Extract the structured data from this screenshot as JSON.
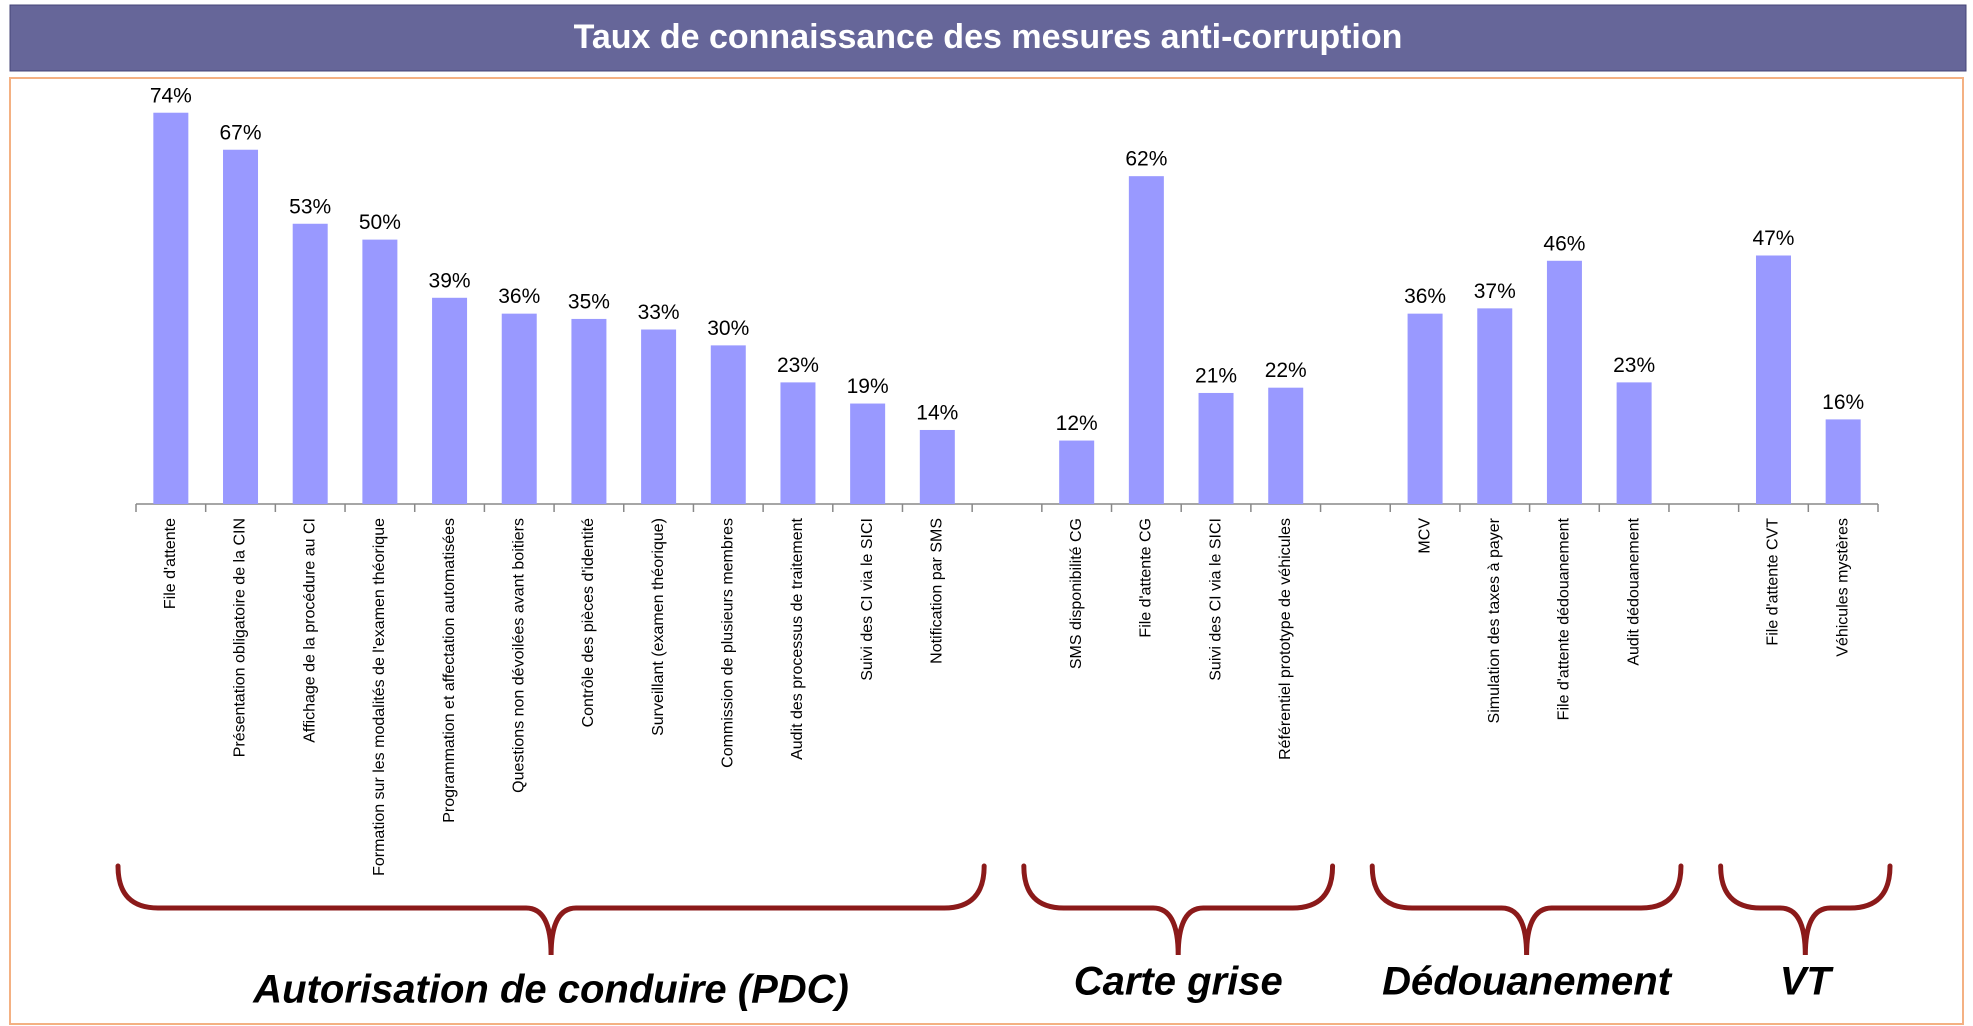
{
  "chart_data": {
    "type": "bar",
    "title": "Taux de connaissance des mesures anti-corruption",
    "categories": [
      "File d'attente",
      "Présentation obligatoire de la CIN",
      "Affichage de la procédure au CI",
      "Formation sur les modalités de l'examen théorique",
      "Programmation et affectation automatisées",
      "Questions non dévoilées avant boitiers",
      "Contrôle des pièces d'identité",
      "Surveillant (examen théorique)",
      "Commission de plusieurs membres",
      "Audit des processus de traitement",
      "Suivi des CI via le SICI",
      "Notification par SMS",
      null,
      "SMS disponibilité CG",
      "File d'attente CG",
      "Suivi des CI via le SICI",
      "Référentiel prototype de véhicules",
      null,
      "MCV",
      "Simulation des taxes à payer",
      "File d'attente dédouanement",
      "Audit dédouanement",
      null,
      "File d'attente CVT",
      "Véhicules mystères"
    ],
    "values": [
      74,
      67,
      53,
      50,
      39,
      36,
      35,
      33,
      30,
      23,
      19,
      14,
      null,
      12,
      62,
      21,
      22,
      null,
      36,
      37,
      46,
      23,
      null,
      47,
      16
    ],
    "value_labels": [
      "74%",
      "67%",
      "53%",
      "50%",
      "39%",
      "36%",
      "35%",
      "33%",
      "30%",
      "23%",
      "19%",
      "14%",
      null,
      "12%",
      "62%",
      "21%",
      "22%",
      null,
      "36%",
      "37%",
      "46%",
      "23%",
      null,
      "47%",
      "16%"
    ],
    "group_labels": [
      "Autorisation de conduire (PDC)",
      "Carte grise",
      "Dédouanement",
      "VT"
    ],
    "color": "#9999ff",
    "ylim": [
      0,
      80
    ]
  }
}
